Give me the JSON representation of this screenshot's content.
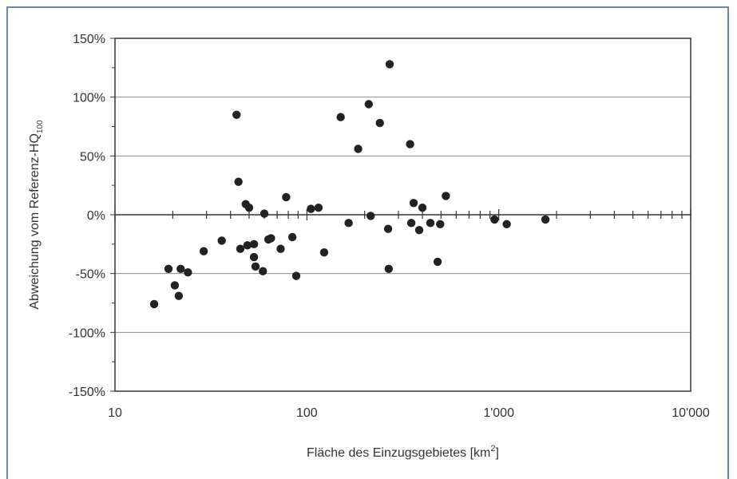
{
  "chart_data": {
    "type": "scatter",
    "title": "",
    "xlabel": "Fläche des Einzugsgebietes [km",
    "xlabel_sup": "2",
    "xlabel_tail": "]",
    "ylabel": "Abweichung vom Referenz-HQ",
    "ylabel_sub": "100",
    "x_scale": "log",
    "xlim": [
      10,
      10000
    ],
    "ylim": [
      -150,
      150
    ],
    "x_ticks": [
      {
        "value": 10,
        "label": "10"
      },
      {
        "value": 100,
        "label": "100"
      },
      {
        "value": 1000,
        "label": "1'000"
      },
      {
        "value": 10000,
        "label": "10'000"
      }
    ],
    "y_ticks": [
      {
        "value": 150,
        "label": "150%"
      },
      {
        "value": 100,
        "label": "100%"
      },
      {
        "value": 50,
        "label": "50%"
      },
      {
        "value": 0,
        "label": "0%"
      },
      {
        "value": -50,
        "label": "-50%"
      },
      {
        "value": -100,
        "label": "-100%"
      },
      {
        "value": -150,
        "label": "-150%"
      }
    ],
    "grid": "horizontal",
    "colors": {
      "points": "#222222",
      "grid": "#8c8c8c",
      "axis": "#333333"
    },
    "points": [
      {
        "x": 16,
        "y": -76
      },
      {
        "x": 19,
        "y": -46
      },
      {
        "x": 20.5,
        "y": -60
      },
      {
        "x": 21.5,
        "y": -69
      },
      {
        "x": 22,
        "y": -46
      },
      {
        "x": 24,
        "y": -49
      },
      {
        "x": 29,
        "y": -31
      },
      {
        "x": 36,
        "y": -22
      },
      {
        "x": 43,
        "y": 85
      },
      {
        "x": 44,
        "y": 28
      },
      {
        "x": 45,
        "y": -29
      },
      {
        "x": 48,
        "y": 9
      },
      {
        "x": 49,
        "y": -26
      },
      {
        "x": 50,
        "y": 6
      },
      {
        "x": 53,
        "y": -25
      },
      {
        "x": 53,
        "y": -36
      },
      {
        "x": 54,
        "y": -44
      },
      {
        "x": 59,
        "y": -48
      },
      {
        "x": 60,
        "y": 1
      },
      {
        "x": 63,
        "y": -21
      },
      {
        "x": 65,
        "y": -20
      },
      {
        "x": 73,
        "y": -29
      },
      {
        "x": 78,
        "y": 15
      },
      {
        "x": 84,
        "y": -19
      },
      {
        "x": 88,
        "y": -52
      },
      {
        "x": 105,
        "y": 5
      },
      {
        "x": 115,
        "y": 6
      },
      {
        "x": 123,
        "y": -32
      },
      {
        "x": 150,
        "y": 83
      },
      {
        "x": 165,
        "y": -7
      },
      {
        "x": 185,
        "y": 56
      },
      {
        "x": 210,
        "y": 94
      },
      {
        "x": 215,
        "y": -1
      },
      {
        "x": 240,
        "y": 78
      },
      {
        "x": 265,
        "y": -12
      },
      {
        "x": 267,
        "y": -46
      },
      {
        "x": 270,
        "y": 128
      },
      {
        "x": 345,
        "y": 60
      },
      {
        "x": 350,
        "y": -7
      },
      {
        "x": 360,
        "y": 10
      },
      {
        "x": 385,
        "y": -13
      },
      {
        "x": 400,
        "y": 6
      },
      {
        "x": 440,
        "y": -7
      },
      {
        "x": 480,
        "y": -40
      },
      {
        "x": 495,
        "y": -8
      },
      {
        "x": 530,
        "y": 16
      },
      {
        "x": 950,
        "y": -4
      },
      {
        "x": 1100,
        "y": -8
      },
      {
        "x": 1750,
        "y": -4
      }
    ]
  }
}
